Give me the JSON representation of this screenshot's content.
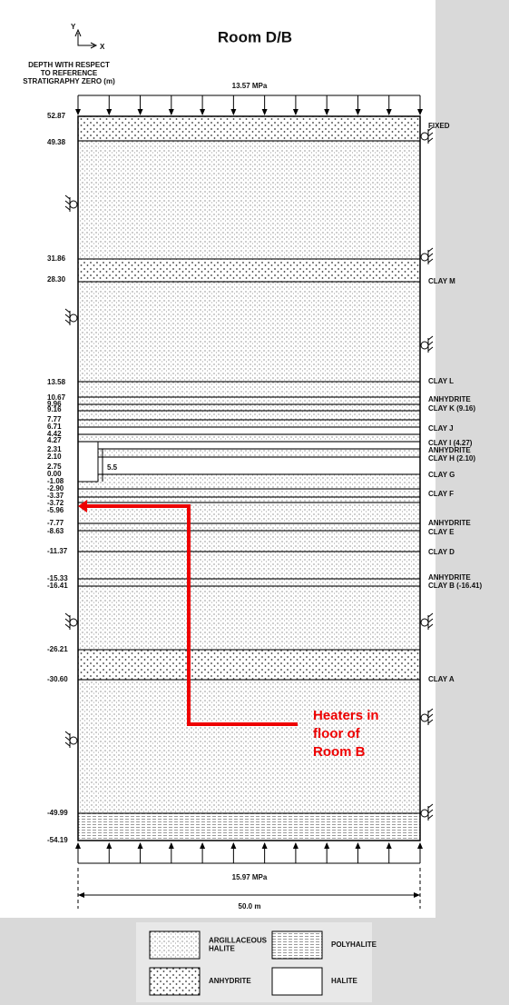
{
  "title": "Room D/B",
  "axes": {
    "y": "Y",
    "x": "X"
  },
  "depth_heading": [
    "DEPTH WITH RESPECT",
    "TO REFERENCE",
    "STRATIGRAPHY ZERO (m)"
  ],
  "top_load": "13.57 MPa",
  "bottom_load": "15.97 MPa",
  "width": "50.0 m",
  "room_width": "5.5",
  "depths": [
    "52.87",
    "49.38",
    "31.86",
    "28.30",
    "13.58",
    "10.67",
    "9.96",
    "9.16",
    "7.77",
    "6.71",
    "4.42",
    "4.27",
    "2.31",
    "2.10",
    "2.75",
    "0.00",
    "-1.08",
    "-2.90",
    "-3.37",
    "-3.72",
    "-5.96",
    "-7.77",
    "-8.63",
    "-11.37",
    "-15.33",
    "-16.41",
    "-26.21",
    "-30.60",
    "-49.99",
    "-54.19"
  ],
  "layers": [
    "FIXED",
    "CLAY M",
    "CLAY L",
    "ANHYDRITE",
    "CLAY K (9.16)",
    "CLAY J",
    "CLAY I (4.27)",
    "ANHYDRITE",
    "CLAY H (2.10)",
    "CLAY G",
    "CLAY F",
    "ANHYDRITE",
    "CLAY E",
    "CLAY D",
    "ANHYDRITE",
    "CLAY B (-16.41)",
    "CLAY A"
  ],
  "annotation": [
    "Heaters in",
    "floor of",
    "Room B"
  ],
  "legend": [
    {
      "label": [
        "ARGILLACEOUS",
        "HALITE"
      ]
    },
    {
      "label": [
        "POLYHALITE"
      ]
    },
    {
      "label": [
        "ANHYDRITE"
      ]
    },
    {
      "label": [
        "HALITE"
      ]
    }
  ]
}
